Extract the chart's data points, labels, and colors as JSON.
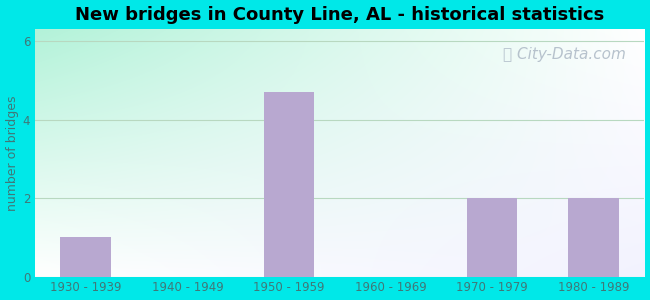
{
  "title": "New bridges in County Line, AL - historical statistics",
  "title_fontsize": 13,
  "title_fontweight": "bold",
  "categories": [
    "1930 - 1939",
    "1940 - 1949",
    "1950 - 1959",
    "1960 - 1969",
    "1970 - 1979",
    "1980 - 1989"
  ],
  "values": [
    1,
    0,
    4.7,
    0,
    2,
    2
  ],
  "bar_color": "#b8a8d0",
  "ylabel": "number of bridges",
  "ylabel_color": "#407878",
  "ylabel_fontsize": 9,
  "xlabel_fontsize": 8.5,
  "tick_color": "#407878",
  "grid_color": "#b8d8c0",
  "background_outer": "#00e8e8",
  "watermark": "City-Data.com",
  "watermark_color": "#b0bcc8",
  "watermark_fontsize": 11,
  "bar_width": 0.5,
  "yticks": [
    0,
    2,
    4,
    6
  ],
  "ylim": [
    0,
    6.3
  ],
  "bg_colors": [
    "#d8f0d8",
    "#ffffff",
    "#e0f0f8"
  ],
  "figsize": [
    6.5,
    3.0
  ],
  "dpi": 100
}
